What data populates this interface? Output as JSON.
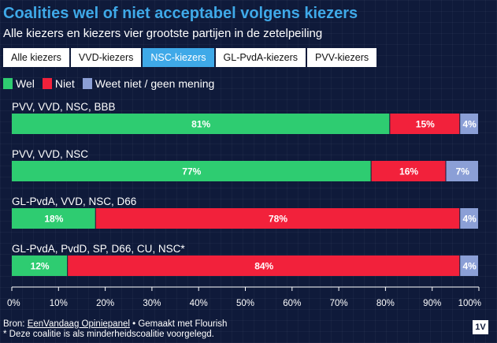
{
  "header": {
    "title": "Coalities wel of niet acceptabel volgens kiezers",
    "subtitle": "Alle kiezers en kiezers vier grootste partijen in de zetelpeiling"
  },
  "tabs": [
    {
      "label": "Alle kiezers",
      "active": false
    },
    {
      "label": "VVD-kiezers",
      "active": false
    },
    {
      "label": "NSC-kiezers",
      "active": true
    },
    {
      "label": "GL-PvdA-kiezers",
      "active": false
    },
    {
      "label": "PVV-kiezers",
      "active": false
    }
  ],
  "colors": {
    "wel": "#2ecc71",
    "niet": "#f2213b",
    "weet_niet": "#8b9fd6",
    "accent": "#3fa9e8"
  },
  "chart_data": {
    "type": "bar",
    "orientation": "horizontal",
    "stacked": true,
    "categories": [
      "PVV, VVD, NSC, BBB",
      "PVV, VVD, NSC",
      "GL-PvdA, VVD, NSC, D66",
      "GL-PvdA, PvdD, SP, D66, CU, NSC*"
    ],
    "series": [
      {
        "name": "Wel",
        "values": [
          81,
          77,
          18,
          12
        ]
      },
      {
        "name": "Niet",
        "values": [
          15,
          16,
          78,
          84
        ]
      },
      {
        "name": "Weet niet / geen mening",
        "values": [
          4,
          7,
          4,
          4
        ]
      }
    ],
    "xlim": [
      0,
      100
    ],
    "xticks": [
      "0%",
      "10%",
      "20%",
      "30%",
      "40%",
      "50%",
      "60%",
      "70%",
      "80%",
      "90%",
      "100%"
    ],
    "grid": false,
    "legend": "top-left"
  },
  "footer": {
    "source_prefix": "Bron: ",
    "source_link": "EenVandaag Opiniepanel",
    "source_suffix": " • Gemaakt met Flourish",
    "note": "* Deze coalitie is als minderheidscoalitie voorgelegd.",
    "logo": "1V"
  }
}
